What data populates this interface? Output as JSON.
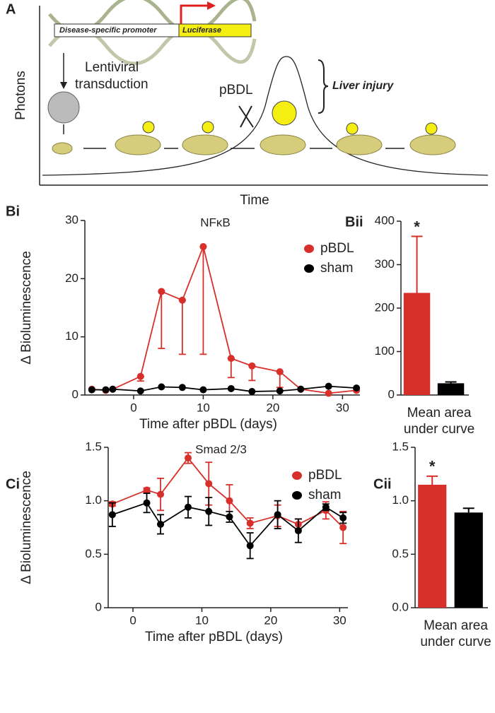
{
  "panel_a": {
    "label": "A",
    "promoter": "Disease-specific promoter",
    "reporter": "Luciferase",
    "step": [
      "Lentiviral",
      "transduction"
    ],
    "ylabel": "Photons",
    "xlabel": "Time",
    "procedure": "pBDL",
    "phase": "Liver injury"
  },
  "chart_data": [
    {
      "type": "line",
      "panel": "Bi",
      "title": "NFκB",
      "xlabel": "Time after pBDL (days)",
      "ylabel": "Δ Bioluminescence",
      "x": [
        -6,
        -4,
        -3,
        1,
        4,
        7,
        10,
        14,
        17,
        21,
        24,
        28,
        32
      ],
      "series": [
        {
          "name": "pBDL",
          "color": "#d7302a",
          "values": [
            1,
            0.8,
            1,
            3.2,
            17.8,
            16.3,
            25.5,
            6.3,
            5,
            4,
            1,
            0.3,
            0.8
          ],
          "errors": [
            0,
            0,
            0,
            0.8,
            9.8,
            9.3,
            18.5,
            3.3,
            2.5,
            2.7,
            0,
            0,
            0
          ]
        },
        {
          "name": "sham",
          "color": "#000000",
          "values": [
            0.9,
            0.9,
            1,
            0.7,
            1.4,
            1.3,
            0.9,
            1.1,
            0.6,
            0.7,
            1,
            1.5,
            1.2
          ],
          "errors": [
            0,
            0,
            0,
            0,
            0,
            0,
            0,
            0,
            0,
            0,
            0,
            0,
            0
          ]
        }
      ],
      "error_bars": "lower",
      "xlim": [
        -7,
        32.5
      ],
      "ylim": [
        0,
        30
      ],
      "xticks": [
        0,
        10,
        20,
        30
      ],
      "yticks": [
        0,
        10,
        20,
        30
      ],
      "legend": "upper right"
    },
    {
      "type": "bar",
      "panel": "Bii",
      "xlabel": [
        "Mean area",
        "under curve"
      ],
      "values": [
        235,
        27
      ],
      "errors": [
        130,
        3
      ],
      "colors": [
        "#d7302a",
        "#000000"
      ],
      "annotation": "*",
      "ylim": [
        0,
        400
      ],
      "yticks": [
        0,
        100,
        200,
        300,
        400
      ]
    },
    {
      "type": "line",
      "panel": "Ci",
      "title": "Smad 2/3",
      "xlabel": "Time after pBDL (days)",
      "ylabel": "Δ Bioluminescence",
      "x": [
        -3,
        2,
        4,
        8,
        11,
        14,
        17,
        21,
        24,
        28,
        30.5
      ],
      "series": [
        {
          "name": "pBDL",
          "color": "#d7302a",
          "values": [
            0.97,
            1.1,
            1.06,
            1.4,
            1.16,
            1.0,
            0.79,
            0.86,
            0.78,
            0.91,
            0.75
          ],
          "errors": [
            0.02,
            0.02,
            0.15,
            0.05,
            0.2,
            0.15,
            0.05,
            0.1,
            0.05,
            0.08,
            0.15
          ]
        },
        {
          "name": "sham",
          "color": "#000000",
          "values": [
            0.87,
            0.98,
            0.78,
            0.94,
            0.9,
            0.85,
            0.58,
            0.87,
            0.72,
            0.94,
            0.84
          ],
          "errors": [
            0.11,
            0.09,
            0.09,
            0.1,
            0.13,
            0.05,
            0.12,
            0.13,
            0.11,
            0.03,
            0.05
          ]
        }
      ],
      "error_bars": "both",
      "xlim": [
        -3.6,
        31.2
      ],
      "ylim": [
        0,
        1.5
      ],
      "xticks": [
        0,
        10,
        20,
        30
      ],
      "yticks": [
        0,
        0.5,
        {
          "value": 1,
          "label": "1.0"
        },
        1.5
      ],
      "legend": "upper right"
    },
    {
      "type": "bar",
      "panel": "Cii",
      "xlabel": [
        "Mean area",
        "under curve"
      ],
      "values": [
        1.15,
        0.89
      ],
      "errors": [
        0.08,
        0.04
      ],
      "colors": [
        "#d7302a",
        "#000000"
      ],
      "annotation": "*",
      "ylim": [
        0,
        1.5
      ],
      "yticks": [
        {
          "value": 0,
          "label": "0.0"
        },
        0.5,
        {
          "value": 1,
          "label": "1.0"
        },
        1.5
      ]
    }
  ]
}
